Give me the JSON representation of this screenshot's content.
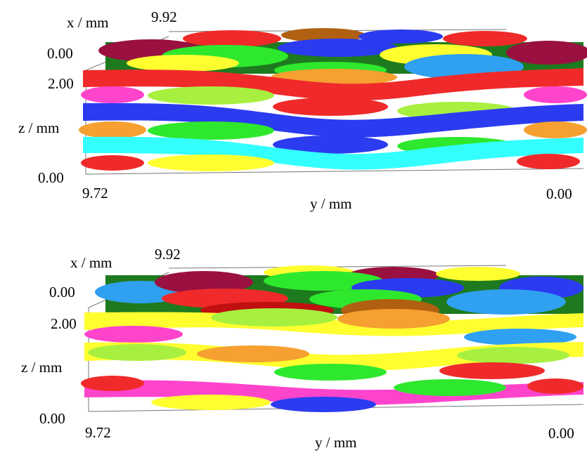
{
  "panels": [
    {
      "x_label": "x / mm",
      "x_max": "9.92",
      "x_min": "0.00",
      "z_label": "z / mm",
      "z_max": "2.00",
      "z_min": "0.00",
      "y_label": "y / mm",
      "y_left": "9.72",
      "y_right": "0.00"
    },
    {
      "x_label": "x / mm",
      "x_max": "9.92",
      "x_min": "0.00",
      "z_label": "z / mm",
      "z_max": "2.00",
      "z_min": "0.00",
      "y_label": "y / mm",
      "y_left": "9.72",
      "y_right": "0.00"
    }
  ],
  "colors": {
    "red": "#f02a2a",
    "magenta": "#ff44cc",
    "blue": "#2b3bf0",
    "orange": "#f5a030",
    "cyan": "#33ffff",
    "green": "#2ee82e",
    "lime": "#a8f040",
    "yellow": "#ffff30",
    "maroon": "#9a1040",
    "skyblue": "#30a0f0",
    "brown": "#b06010",
    "darkred": "#c01010"
  }
}
